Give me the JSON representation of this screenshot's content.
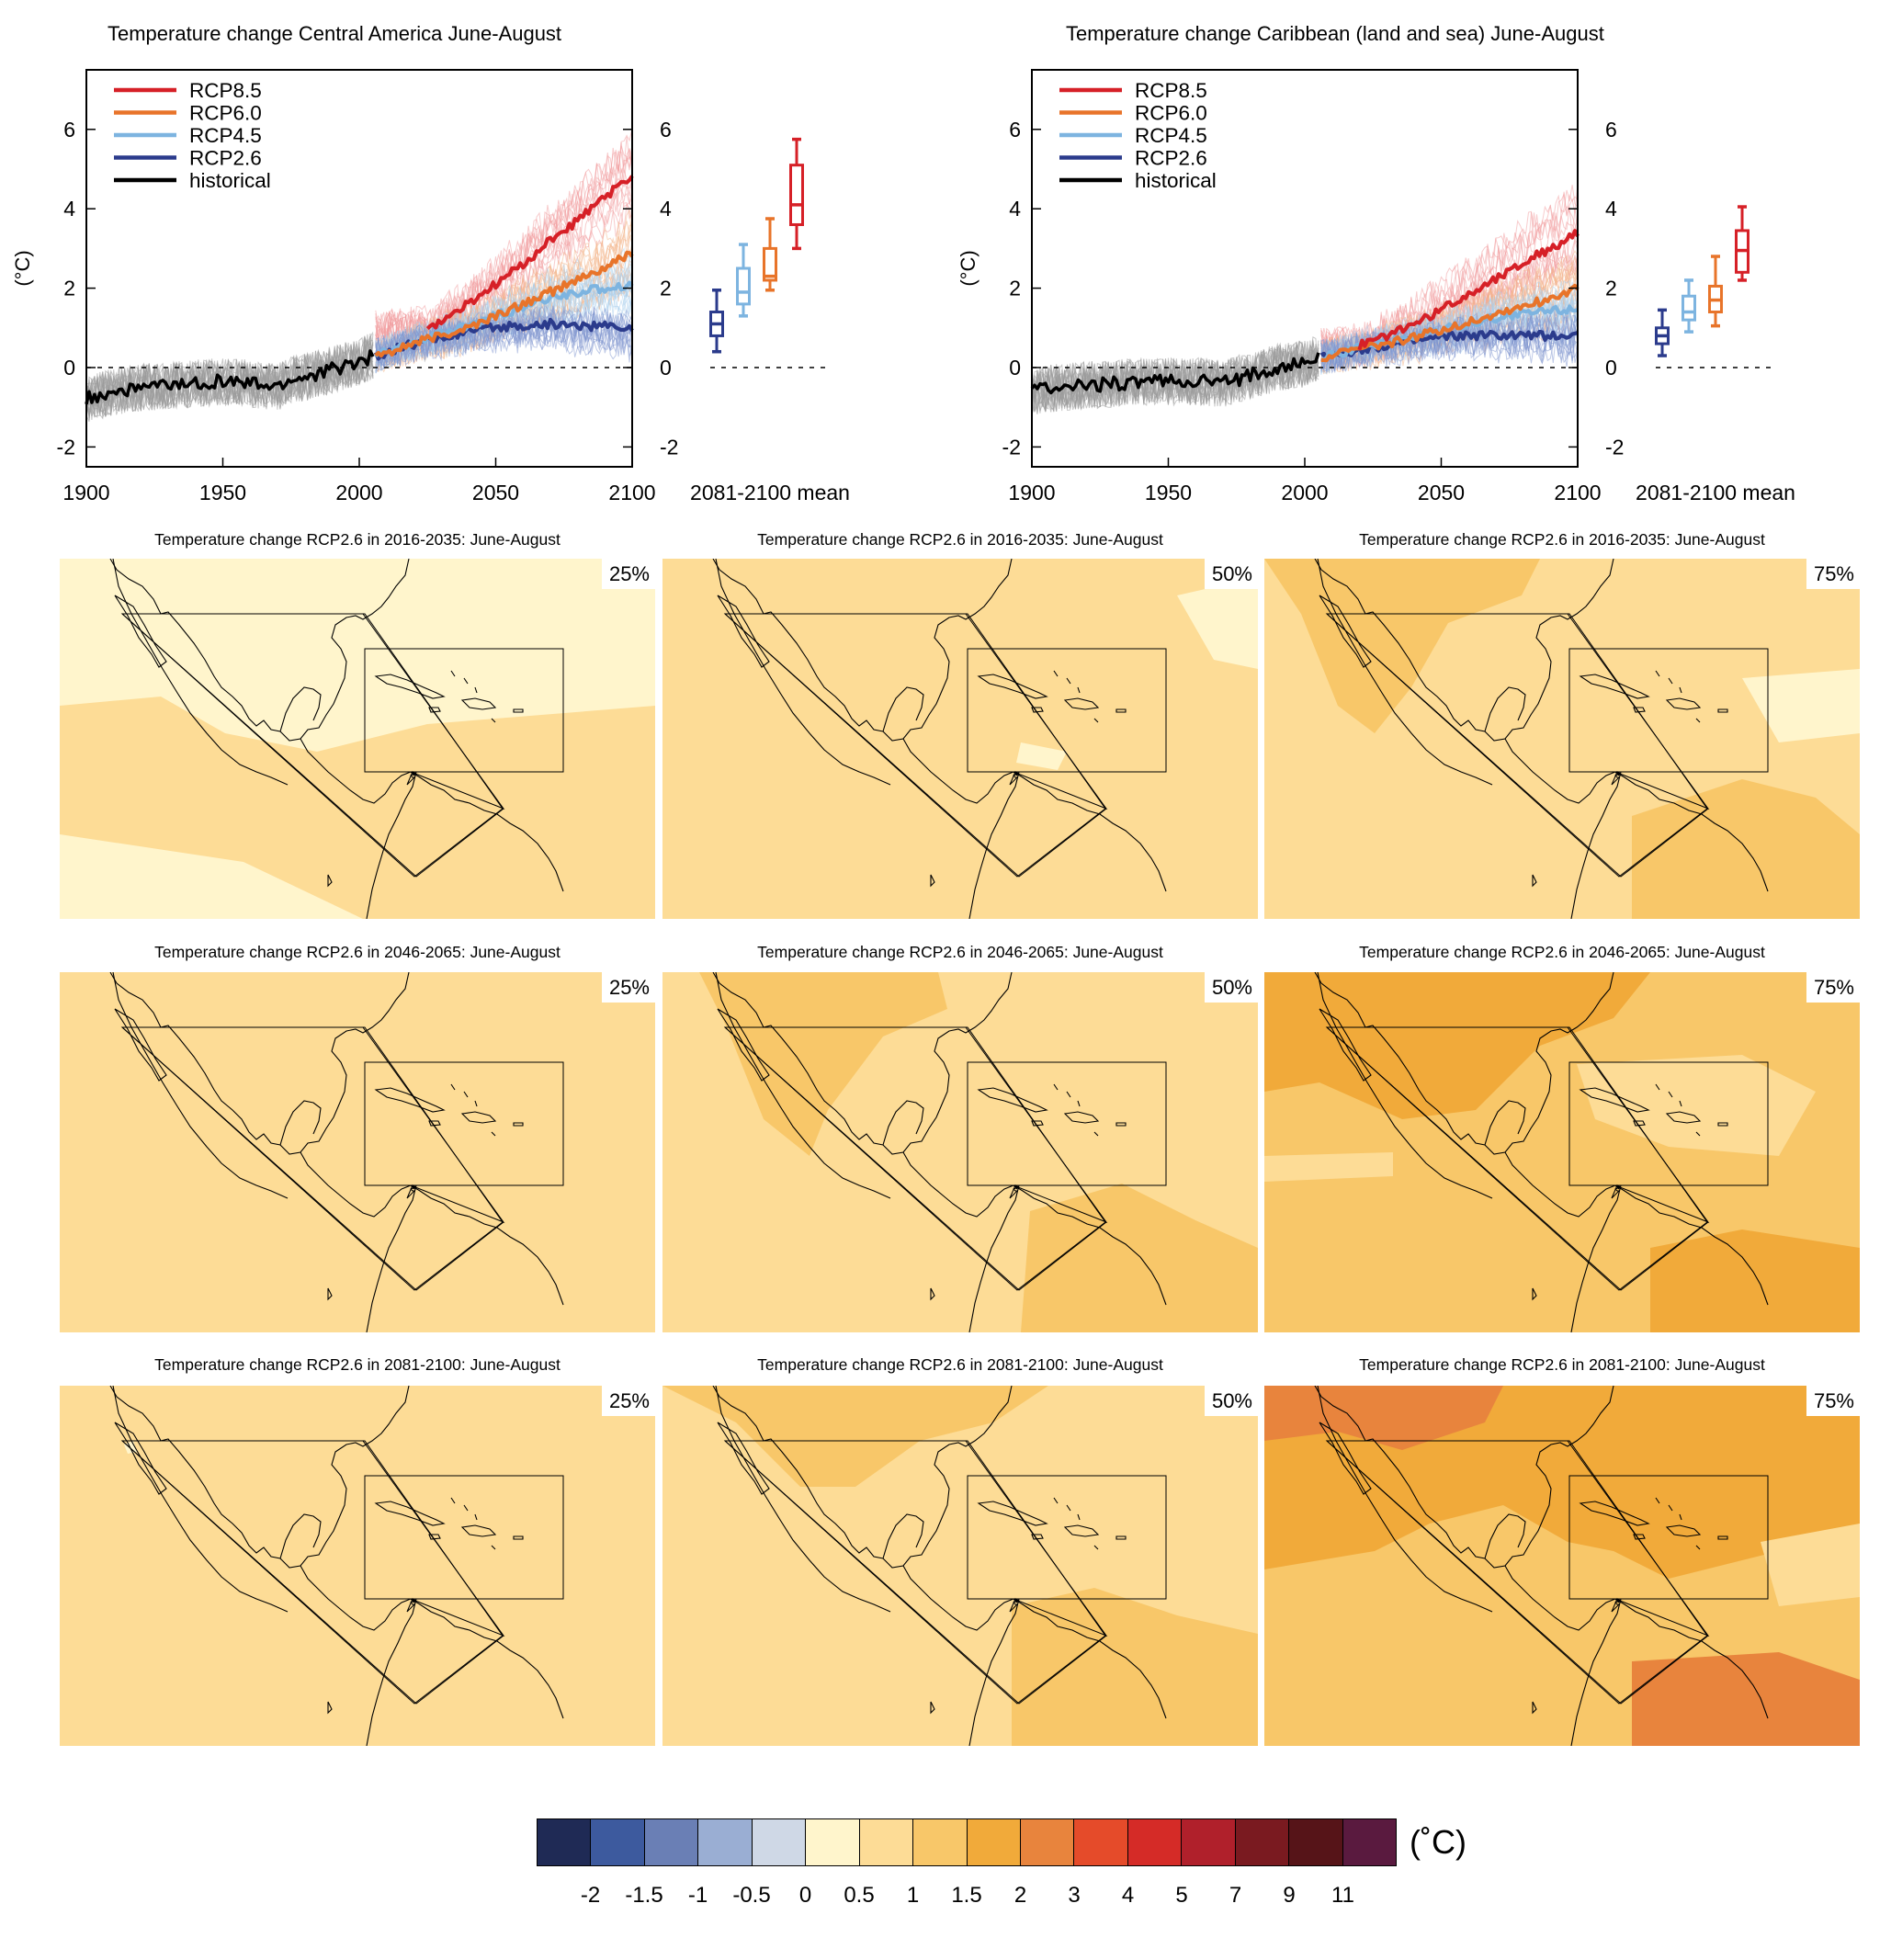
{
  "chart_data": [
    {
      "type": "line",
      "title": "Temperature change Central America June-August",
      "ylabel": "(°C)",
      "xlabel": "",
      "xlim": [
        1900,
        2100
      ],
      "ylim": [
        -2.5,
        7.5
      ],
      "xticks": [
        "1900",
        "1950",
        "2000",
        "2050",
        "2100"
      ],
      "yticks": [
        "-2",
        "0",
        "2",
        "4",
        "6"
      ],
      "legend_position": "top-left",
      "legend": [
        "RCP8.5",
        "RCP6.0",
        "RCP4.5",
        "RCP2.6",
        "historical"
      ],
      "series": [
        {
          "name": "historical",
          "color": "#000000",
          "x": [
            1900,
            1910,
            1920,
            1930,
            1940,
            1950,
            1960,
            1970,
            1975,
            1980,
            1985,
            1990,
            1995,
            2000,
            2005
          ],
          "y": [
            -0.8,
            -0.6,
            -0.5,
            -0.45,
            -0.4,
            -0.35,
            -0.4,
            -0.5,
            -0.3,
            -0.25,
            -0.15,
            -0.05,
            0.05,
            0.15,
            0.3
          ]
        },
        {
          "name": "RCP2.6",
          "color": "#2b3b8c",
          "x": [
            2006,
            2020,
            2030,
            2040,
            2050,
            2060,
            2070,
            2080,
            2090,
            2100
          ],
          "y": [
            0.3,
            0.6,
            0.75,
            0.9,
            1.0,
            1.05,
            1.1,
            1.05,
            1.05,
            1.0
          ]
        },
        {
          "name": "RCP4.5",
          "color": "#7db4e0",
          "x": [
            2006,
            2020,
            2030,
            2040,
            2050,
            2060,
            2070,
            2080,
            2090,
            2100
          ],
          "y": [
            0.3,
            0.65,
            0.85,
            1.05,
            1.3,
            1.5,
            1.75,
            1.9,
            2.0,
            2.1
          ]
        },
        {
          "name": "RCP6.0",
          "color": "#e8742a",
          "x": [
            2006,
            2020,
            2030,
            2040,
            2050,
            2060,
            2070,
            2080,
            2090,
            2100
          ],
          "y": [
            0.3,
            0.6,
            0.8,
            1.0,
            1.3,
            1.6,
            1.9,
            2.2,
            2.5,
            2.9
          ]
        },
        {
          "name": "RCP8.5",
          "color": "#d62027",
          "x": [
            2025,
            2030,
            2040,
            2050,
            2060,
            2070,
            2080,
            2090,
            2100
          ],
          "y": [
            1.0,
            1.15,
            1.6,
            2.1,
            2.6,
            3.2,
            3.7,
            4.3,
            4.8
          ]
        }
      ],
      "box_label": "2081-2100 mean",
      "boxes": [
        {
          "name": "RCP2.6",
          "color": "#2b3b8c",
          "min": 0.4,
          "q1": 0.8,
          "median": 1.1,
          "q3": 1.4,
          "max": 1.95
        },
        {
          "name": "RCP4.5",
          "color": "#7db4e0",
          "min": 1.3,
          "q1": 1.6,
          "median": 1.9,
          "q3": 2.5,
          "max": 3.1
        },
        {
          "name": "RCP6.0",
          "color": "#e8742a",
          "min": 1.95,
          "q1": 2.2,
          "median": 2.3,
          "q3": 3.0,
          "max": 3.75
        },
        {
          "name": "RCP8.5",
          "color": "#d62027",
          "min": 3.0,
          "q1": 3.6,
          "median": 4.1,
          "q3": 5.1,
          "max": 5.75
        }
      ]
    },
    {
      "type": "line",
      "title": "Temperature change Caribbean (land and sea) June-August",
      "ylabel": "(°C)",
      "xlabel": "",
      "xlim": [
        1900,
        2100
      ],
      "ylim": [
        -2.5,
        7.5
      ],
      "xticks": [
        "1900",
        "1950",
        "2000",
        "2050",
        "2100"
      ],
      "yticks": [
        "-2",
        "0",
        "2",
        "4",
        "6"
      ],
      "legend_position": "top-left",
      "legend": [
        "RCP8.5",
        "RCP6.0",
        "RCP4.5",
        "RCP2.6",
        "historical"
      ],
      "series": [
        {
          "name": "historical",
          "color": "#000000",
          "x": [
            1900,
            1910,
            1920,
            1930,
            1940,
            1950,
            1960,
            1970,
            1975,
            1980,
            1985,
            1990,
            1995,
            2000,
            2005
          ],
          "y": [
            -0.6,
            -0.5,
            -0.45,
            -0.4,
            -0.35,
            -0.35,
            -0.35,
            -0.4,
            -0.3,
            -0.2,
            -0.1,
            0.0,
            0.05,
            0.1,
            0.25
          ]
        },
        {
          "name": "RCP2.6",
          "color": "#2b3b8c",
          "x": [
            2006,
            2020,
            2030,
            2040,
            2050,
            2060,
            2070,
            2080,
            2090,
            2100
          ],
          "y": [
            0.25,
            0.45,
            0.55,
            0.65,
            0.75,
            0.8,
            0.8,
            0.8,
            0.8,
            0.8
          ]
        },
        {
          "name": "RCP4.5",
          "color": "#7db4e0",
          "x": [
            2006,
            2020,
            2030,
            2040,
            2050,
            2060,
            2070,
            2080,
            2090,
            2100
          ],
          "y": [
            0.25,
            0.5,
            0.65,
            0.8,
            0.95,
            1.1,
            1.25,
            1.35,
            1.45,
            1.5
          ]
        },
        {
          "name": "RCP6.0",
          "color": "#e8742a",
          "x": [
            2006,
            2020,
            2030,
            2040,
            2050,
            2060,
            2070,
            2080,
            2090,
            2100
          ],
          "y": [
            0.25,
            0.45,
            0.6,
            0.75,
            0.95,
            1.15,
            1.35,
            1.55,
            1.75,
            2.0
          ]
        },
        {
          "name": "RCP8.5",
          "color": "#d62027",
          "x": [
            2020,
            2030,
            2040,
            2050,
            2060,
            2070,
            2080,
            2090,
            2100
          ],
          "y": [
            0.55,
            0.8,
            1.1,
            1.45,
            1.85,
            2.25,
            2.65,
            3.0,
            3.4
          ]
        }
      ],
      "box_label": "2081-2100 mean",
      "boxes": [
        {
          "name": "RCP2.6",
          "color": "#2b3b8c",
          "min": 0.3,
          "q1": 0.6,
          "median": 0.8,
          "q3": 1.0,
          "max": 1.45
        },
        {
          "name": "RCP4.5",
          "color": "#7db4e0",
          "min": 0.9,
          "q1": 1.2,
          "median": 1.4,
          "q3": 1.8,
          "max": 2.2
        },
        {
          "name": "RCP6.0",
          "color": "#e8742a",
          "min": 1.05,
          "q1": 1.4,
          "median": 1.7,
          "q3": 2.05,
          "max": 2.8
        },
        {
          "name": "RCP8.5",
          "color": "#d62027",
          "min": 2.2,
          "q1": 2.4,
          "median": 2.95,
          "q3": 3.45,
          "max": 4.05
        }
      ]
    },
    {
      "type": "heatmap",
      "panels": [
        {
          "title": "Temperature change RCP2.6 in 2016-2035: June-August",
          "percentile": "25%",
          "base_level": "0 to 0.5"
        },
        {
          "title": "Temperature change RCP2.6 in 2016-2035: June-August",
          "percentile": "50%",
          "base_level": "0.5 to 1"
        },
        {
          "title": "Temperature change RCP2.6 in 2016-2035: June-August",
          "percentile": "75%",
          "base_level": "0.5 to 1"
        },
        {
          "title": "Temperature change RCP2.6 in 2046-2065: June-August",
          "percentile": "25%",
          "base_level": "0.5 to 1"
        },
        {
          "title": "Temperature change RCP2.6 in 2046-2065: June-August",
          "percentile": "50%",
          "base_level": "0.5 to 1"
        },
        {
          "title": "Temperature change RCP2.6 in 2046-2065: June-August",
          "percentile": "75%",
          "base_level": "1 to 1.5"
        },
        {
          "title": "Temperature change RCP2.6 in 2081-2100: June-August",
          "percentile": "25%",
          "base_level": "0.5 to 1"
        },
        {
          "title": "Temperature change RCP2.6 in 2081-2100: June-August",
          "percentile": "50%",
          "base_level": "0.5 to 1"
        },
        {
          "title": "Temperature change RCP2.6 in 2081-2100: June-August",
          "percentile": "75%",
          "base_level": "1 to 1.5"
        }
      ],
      "colorbar": {
        "unit": "(˚C)",
        "labels": [
          "-2",
          "-1.5",
          "-1",
          "-0.5",
          "0",
          "0.5",
          "1",
          "1.5",
          "2",
          "3",
          "4",
          "5",
          "7",
          "9",
          "11"
        ],
        "colors": [
          "#1f2a55",
          "#3d5a9e",
          "#6a7fb5",
          "#9aaed3",
          "#cfd8e6",
          "#fff5cc",
          "#fddc96",
          "#f8c769",
          "#f1aa3a",
          "#e8843d",
          "#e54b2a",
          "#d52b27",
          "#b0202b",
          "#7a1a20",
          "#561418",
          "#5a1a3f"
        ]
      }
    }
  ]
}
